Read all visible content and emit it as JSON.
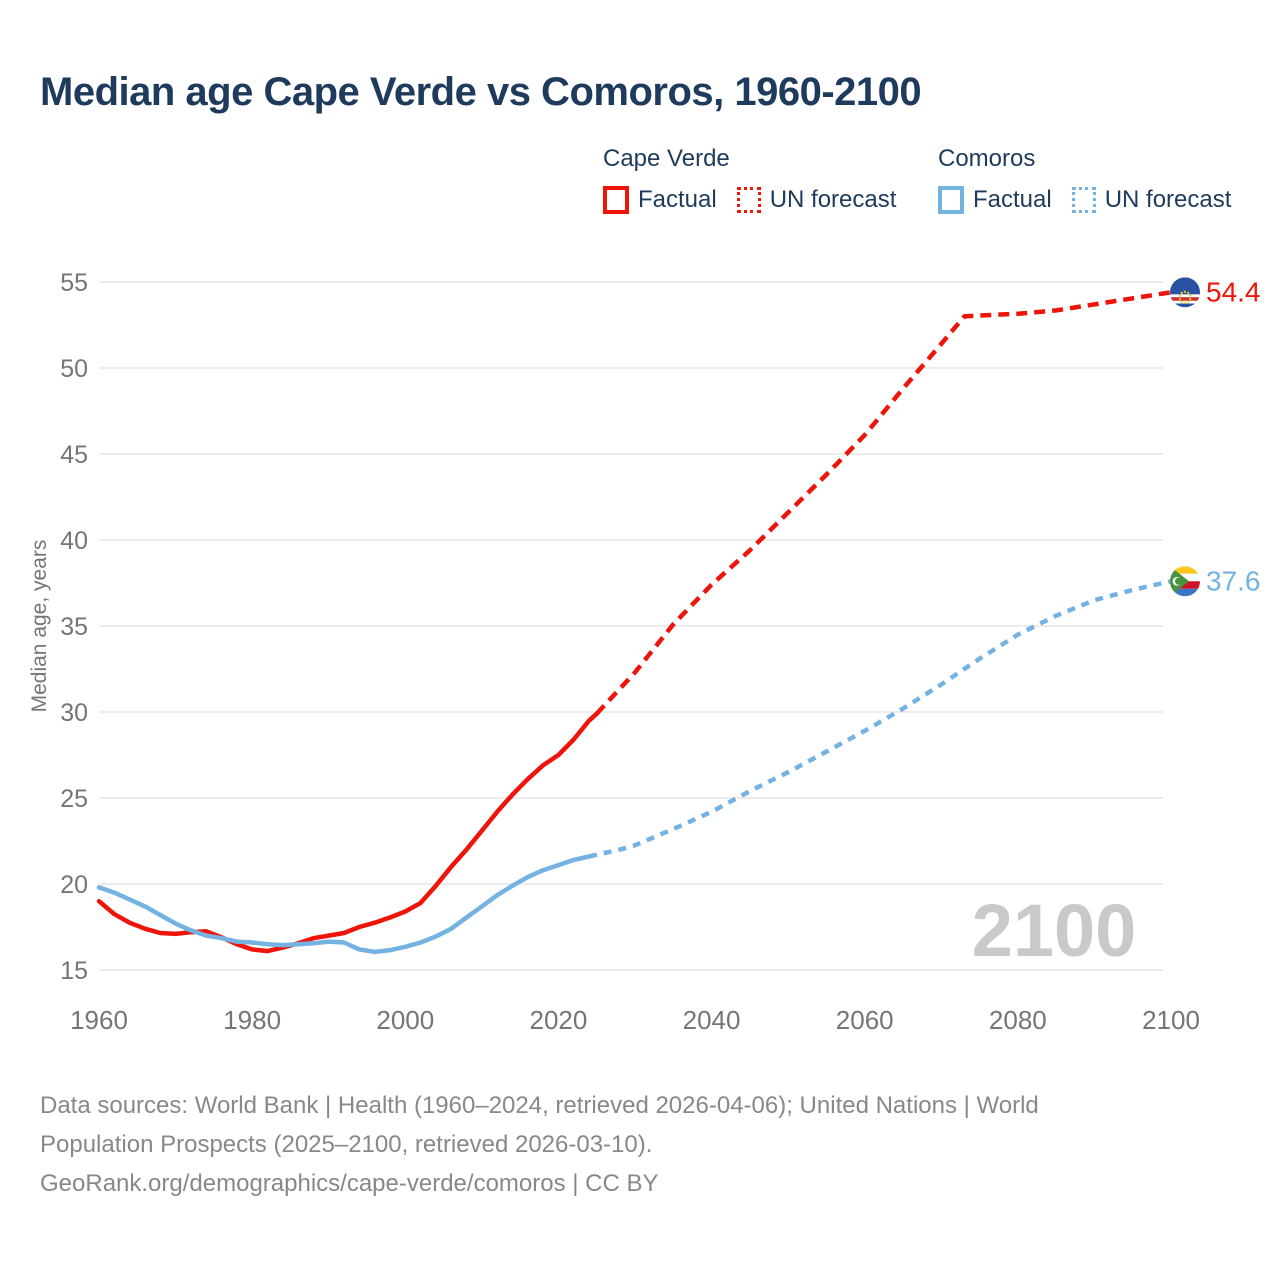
{
  "header": {
    "title": "Median age Cape Verde vs Comoros, 1960-2100"
  },
  "legend": {
    "groups": [
      {
        "name": "Cape Verde",
        "items": [
          {
            "label": "Factual",
            "style": "solid",
            "color": "#ee1409"
          },
          {
            "label": "UN forecast",
            "style": "dotted",
            "color": "#ee1409"
          }
        ]
      },
      {
        "name": "Comoros",
        "items": [
          {
            "label": "Factual",
            "style": "solid",
            "color": "#74b2e2"
          },
          {
            "label": "UN forecast",
            "style": "dotted",
            "color": "#74b2e2"
          }
        ]
      }
    ]
  },
  "chart_data": {
    "type": "line",
    "title": "Median age Cape Verde vs Comoros, 1960-2100",
    "xlabel": "",
    "ylabel": "Median age, years",
    "xlim": [
      1960,
      2112
    ],
    "ylim": [
      13.5,
      56.5
    ],
    "x_ticks": [
      1960,
      1980,
      2000,
      2020,
      2040,
      2060,
      2080,
      2100
    ],
    "y_ticks": [
      15,
      20,
      25,
      30,
      35,
      40,
      45,
      50,
      55
    ],
    "grid": "horizontal",
    "legend_position": "top",
    "watermark": "2100",
    "series": [
      {
        "name": "Cape Verde — Factual",
        "color": "#ee1409",
        "style": "solid",
        "points": [
          [
            1960,
            19.0
          ],
          [
            1962,
            18.25
          ],
          [
            1964,
            17.75
          ],
          [
            1966,
            17.4
          ],
          [
            1968,
            17.15
          ],
          [
            1970,
            17.1
          ],
          [
            1972,
            17.2
          ],
          [
            1974,
            17.25
          ],
          [
            1976,
            16.9
          ],
          [
            1978,
            16.5
          ],
          [
            1980,
            16.2
          ],
          [
            1982,
            16.1
          ],
          [
            1984,
            16.3
          ],
          [
            1986,
            16.55
          ],
          [
            1988,
            16.85
          ],
          [
            1990,
            17.0
          ],
          [
            1992,
            17.15
          ],
          [
            1994,
            17.5
          ],
          [
            1996,
            17.75
          ],
          [
            1998,
            18.05
          ],
          [
            2000,
            18.4
          ],
          [
            2002,
            18.9
          ],
          [
            2004,
            19.9
          ],
          [
            2006,
            21.0
          ],
          [
            2008,
            22.0
          ],
          [
            2010,
            23.1
          ],
          [
            2012,
            24.2
          ],
          [
            2014,
            25.2
          ],
          [
            2016,
            26.1
          ],
          [
            2018,
            26.9
          ],
          [
            2020,
            27.5
          ],
          [
            2022,
            28.4
          ],
          [
            2024,
            29.5
          ],
          [
            2025,
            29.9
          ]
        ]
      },
      {
        "name": "Cape Verde — UN forecast",
        "color": "#ee1409",
        "style": "dashed",
        "points": [
          [
            2025,
            29.9
          ],
          [
            2030,
            32.3
          ],
          [
            2035,
            35.1
          ],
          [
            2040,
            37.4
          ],
          [
            2045,
            39.4
          ],
          [
            2050,
            41.6
          ],
          [
            2055,
            43.8
          ],
          [
            2060,
            46.1
          ],
          [
            2065,
            48.8
          ],
          [
            2070,
            51.4
          ],
          [
            2073,
            53.0
          ],
          [
            2075,
            53.05
          ],
          [
            2080,
            53.15
          ],
          [
            2085,
            53.35
          ],
          [
            2090,
            53.7
          ],
          [
            2095,
            54.05
          ],
          [
            2100,
            54.4
          ]
        ]
      },
      {
        "name": "Comoros — Factual",
        "color": "#74b2e2",
        "style": "solid",
        "points": [
          [
            1960,
            19.8
          ],
          [
            1962,
            19.5
          ],
          [
            1964,
            19.1
          ],
          [
            1966,
            18.7
          ],
          [
            1968,
            18.2
          ],
          [
            1970,
            17.7
          ],
          [
            1972,
            17.3
          ],
          [
            1974,
            17.0
          ],
          [
            1976,
            16.85
          ],
          [
            1978,
            16.65
          ],
          [
            1980,
            16.6
          ],
          [
            1982,
            16.5
          ],
          [
            1984,
            16.45
          ],
          [
            1986,
            16.5
          ],
          [
            1988,
            16.55
          ],
          [
            1990,
            16.65
          ],
          [
            1992,
            16.6
          ],
          [
            1994,
            16.2
          ],
          [
            1996,
            16.05
          ],
          [
            1998,
            16.15
          ],
          [
            2000,
            16.35
          ],
          [
            2002,
            16.6
          ],
          [
            2004,
            16.95
          ],
          [
            2006,
            17.4
          ],
          [
            2008,
            18.05
          ],
          [
            2010,
            18.7
          ],
          [
            2012,
            19.35
          ],
          [
            2014,
            19.9
          ],
          [
            2016,
            20.4
          ],
          [
            2018,
            20.8
          ],
          [
            2020,
            21.1
          ],
          [
            2022,
            21.4
          ],
          [
            2024,
            21.6
          ]
        ]
      },
      {
        "name": "Comoros — UN forecast",
        "color": "#74b2e2",
        "style": "dashed",
        "points": [
          [
            2024,
            21.6
          ],
          [
            2026,
            21.8
          ],
          [
            2028,
            22.0
          ],
          [
            2030,
            22.25
          ],
          [
            2035,
            23.2
          ],
          [
            2040,
            24.2
          ],
          [
            2045,
            25.4
          ],
          [
            2050,
            26.5
          ],
          [
            2055,
            27.7
          ],
          [
            2060,
            28.9
          ],
          [
            2065,
            30.2
          ],
          [
            2070,
            31.6
          ],
          [
            2075,
            33.1
          ],
          [
            2080,
            34.5
          ],
          [
            2085,
            35.6
          ],
          [
            2090,
            36.5
          ],
          [
            2095,
            37.1
          ],
          [
            2100,
            37.6
          ]
        ]
      }
    ],
    "end_labels": [
      {
        "text": "54.4",
        "value": 54.4,
        "year": 2100,
        "color": "#ee1409",
        "flag": "cape-verde"
      },
      {
        "text": "37.6",
        "value": 37.6,
        "year": 2100,
        "color": "#74b2e2",
        "flag": "comoros"
      }
    ],
    "colors": {
      "grid": "#ececec",
      "tick_text": "#757575",
      "watermark": "#c9c9c9"
    }
  },
  "footer": {
    "lines": [
      "Data sources: World Bank | Health (1960–2024, retrieved 2026-04-06); United Nations | World",
      "Population Prospects (2025–2100, retrieved 2026-03-10).",
      "GeoRank.org/demographics/cape-verde/comoros | CC BY"
    ]
  }
}
